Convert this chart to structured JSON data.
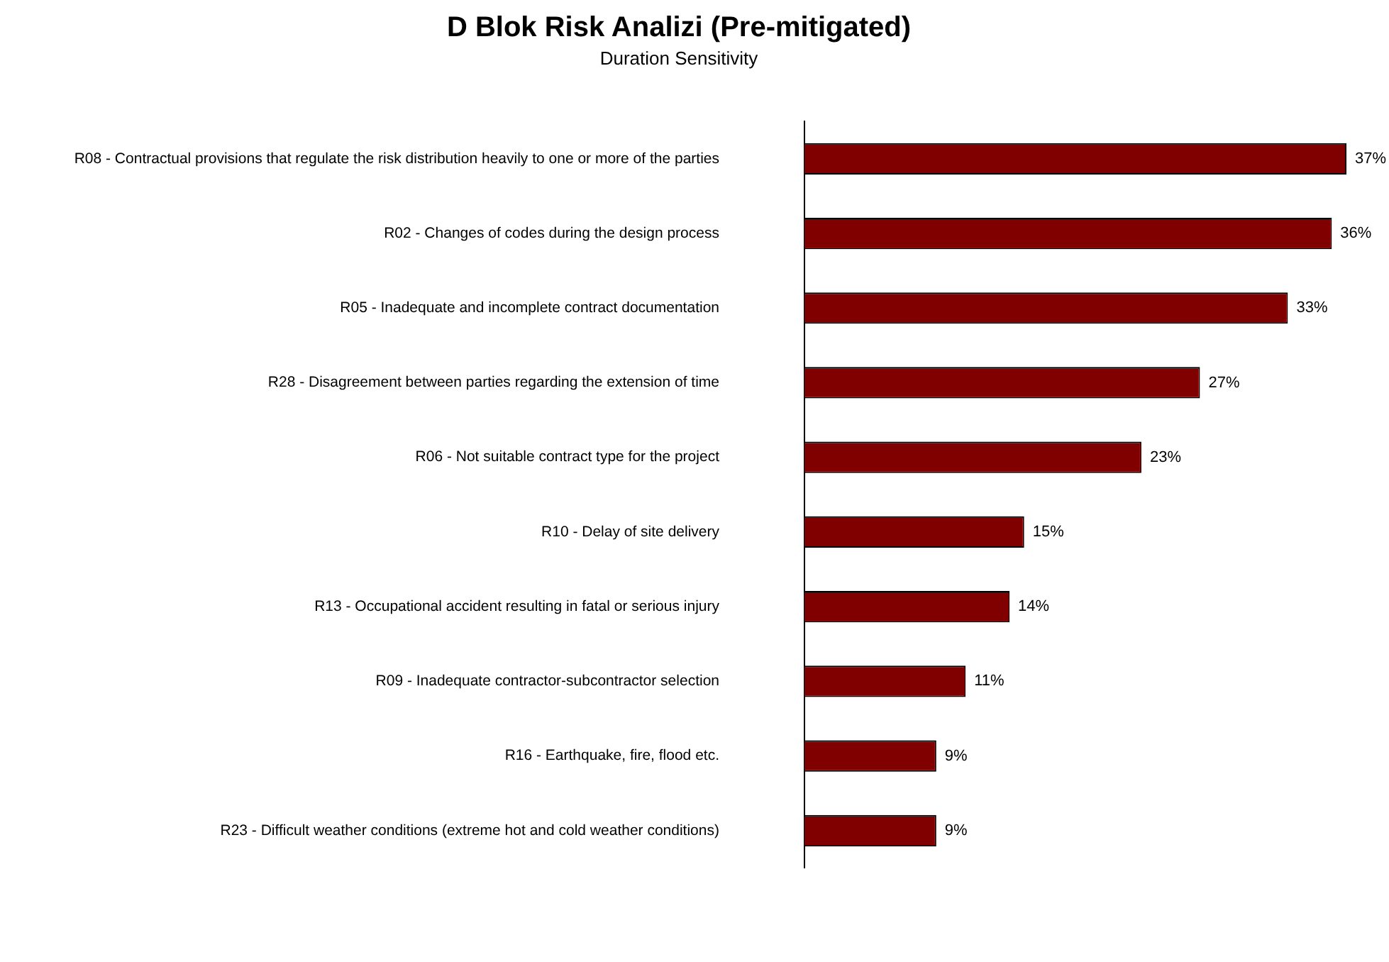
{
  "chart_data": {
    "type": "bar",
    "orientation": "horizontal",
    "title": "D Blok Risk Analizi (Pre-mitigated)",
    "subtitle": "Duration Sensitivity",
    "categories": [
      "R08 - Contractual provisions that regulate the risk distribution heavily to one or more of the parties",
      "R02 - Changes of codes during the design process",
      "R05 - Inadequate and incomplete contract documentation",
      "R28 - Disagreement between parties regarding the extension of time",
      "R06 - Not suitable contract type for the project",
      "R10 - Delay of site delivery",
      "R13 - Occupational accident resulting in fatal or serious injury",
      "R09 - Inadequate contractor-subcontractor selection",
      "R16 - Earthquake, fire, flood etc.",
      "R23 - Difficult weather conditions (extreme hot and cold weather conditions)"
    ],
    "values": [
      37,
      36,
      33,
      27,
      23,
      15,
      14,
      11,
      9,
      9
    ],
    "value_labels": [
      "37%",
      "36%",
      "33%",
      "27%",
      "23%",
      "15%",
      "14%",
      "11%",
      "9%",
      "9%"
    ],
    "color": "#800000"
  }
}
